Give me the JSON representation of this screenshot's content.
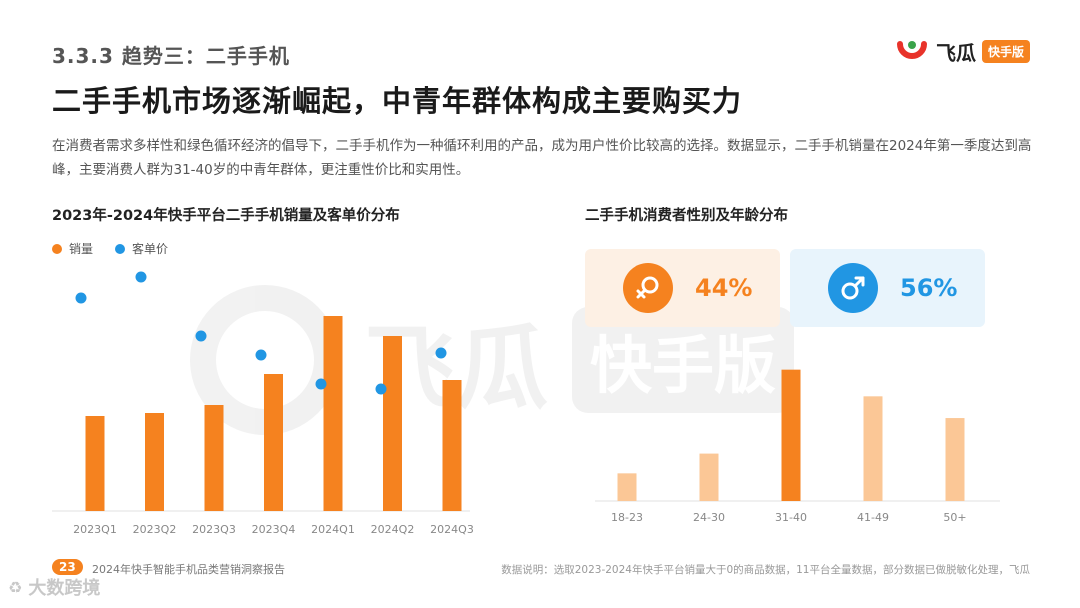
{
  "header": {
    "section_title": "3.3.3 趋势三：二手手机",
    "headline": "二手手机市场逐渐崛起，中青年群体构成主要购买力",
    "intro": "在消费者需求多样性和绿色循环经济的倡导下，二手手机作为一种循环利用的产品，成为用户性价比较高的选择。数据显示，二手手机销量在2024年第一季度达到高峰，主要消费人群为31-40岁的中青年群体，更注重性价比和实用性。"
  },
  "logo": {
    "brand": "飞瓜",
    "badge": "快手版"
  },
  "watermark": {
    "text": "飞瓜",
    "badge": "快手版"
  },
  "colors": {
    "orange": "#f5821f",
    "blue": "#2196e3",
    "orange_light": "#fbc796"
  },
  "chart_data": [
    {
      "type": "bar",
      "title": "2023年-2024年快手平台二手手机销量及客单价分布",
      "categories": [
        "2023Q1",
        "2023Q2",
        "2023Q3",
        "2023Q4",
        "2024Q1",
        "2024Q2",
        "2024Q3"
      ],
      "series": [
        {
          "name": "销量",
          "type": "bar",
          "values": [
            95,
            98,
            106,
            137,
            195,
            175,
            131
          ]
        },
        {
          "name": "客单价",
          "type": "scatter",
          "values": [
            213,
            234,
            175,
            156,
            127,
            122,
            158
          ]
        }
      ],
      "ylim": [
        0,
        260
      ],
      "legend": "top-left",
      "grid": false
    },
    {
      "type": "bar",
      "title": "二手手机消费者性别及年龄分布",
      "categories": [
        "18-23",
        "24-30",
        "31-40",
        "41-49",
        "50+"
      ],
      "values": [
        28,
        48,
        133,
        106,
        84
      ],
      "ylim": [
        0,
        160
      ],
      "grid": false,
      "gender": [
        {
          "label": "女",
          "percent": "44%",
          "icon": "female-symbol-icon"
        },
        {
          "label": "男",
          "percent": "56%",
          "icon": "male-symbol-icon"
        }
      ]
    }
  ],
  "footer": {
    "page_number": "23",
    "report_title": "2024年快手智能手机品类营销洞察报告",
    "note": "数据说明：选取2023-2024年快手平台销量大于0的商品数据，11平台全量数据，部分数据已做脱敏化处理，飞瓜",
    "corner_mark": "大数跨境"
  }
}
